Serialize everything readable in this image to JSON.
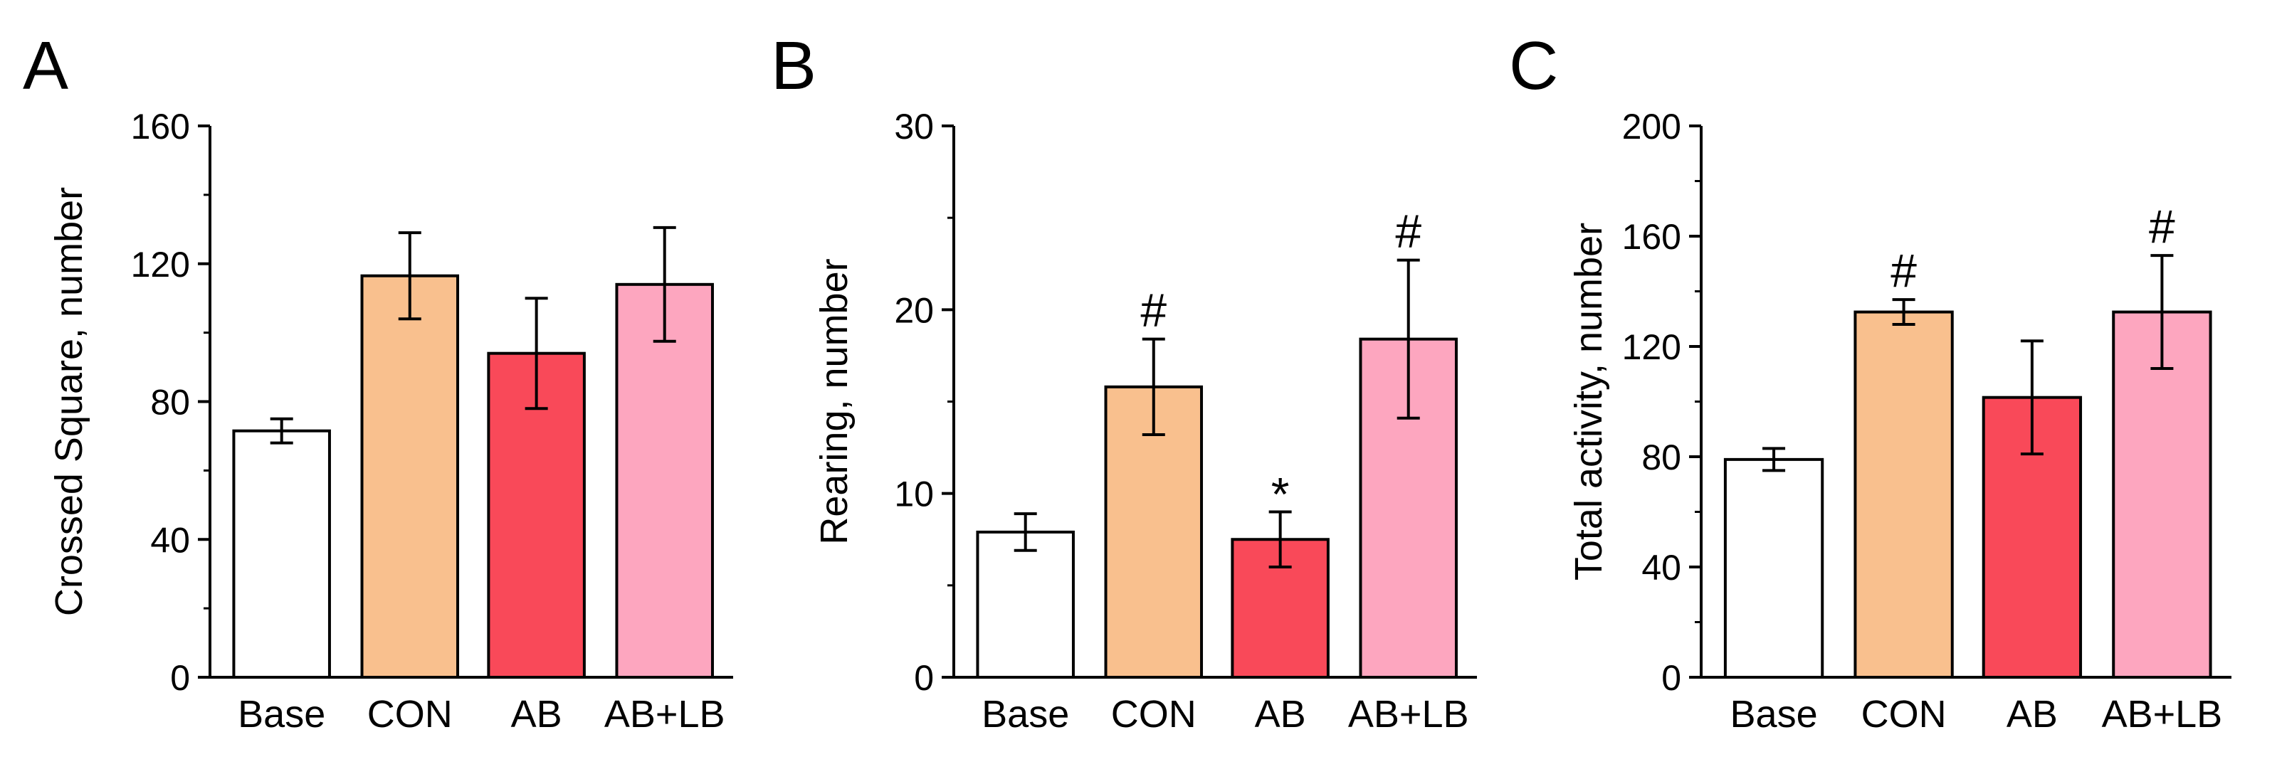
{
  "chart_data": [
    {
      "type": "bar",
      "panel_label": "A",
      "categories": [
        "Base",
        "CON",
        "AB",
        "AB+LB"
      ],
      "values": [
        71.5,
        116.5,
        94,
        114
      ],
      "errors": [
        3.5,
        12.5,
        16,
        16.5
      ],
      "annotations": [
        "",
        "",
        "",
        ""
      ],
      "ylabel": "Crossed Square, number",
      "xlabel": "",
      "ylim": [
        0,
        160
      ],
      "yticks": [
        0,
        40,
        80,
        120,
        160
      ],
      "ytick_labels": [
        "0",
        "40",
        "80",
        "120",
        "160"
      ],
      "minor_step": 20,
      "colors": [
        "#ffffff",
        "#f9c08e",
        "#f94959",
        "#fda6bf"
      ]
    },
    {
      "type": "bar",
      "panel_label": "B",
      "categories": [
        "Base",
        "CON",
        "AB",
        "AB+LB"
      ],
      "values": [
        7.9,
        15.8,
        7.5,
        18.4
      ],
      "errors": [
        1.0,
        2.6,
        1.5,
        4.3
      ],
      "annotations": [
        "",
        "#",
        "*",
        "#"
      ],
      "ylabel": "Rearing, number",
      "xlabel": "",
      "ylim": [
        0,
        30
      ],
      "yticks": [
        0,
        10,
        20,
        30
      ],
      "ytick_labels": [
        "0",
        "10",
        "20",
        "30"
      ],
      "minor_step": 5,
      "colors": [
        "#ffffff",
        "#f9c08e",
        "#f94959",
        "#fda6bf"
      ]
    },
    {
      "type": "bar",
      "panel_label": "C",
      "categories": [
        "Base",
        "CON",
        "AB",
        "AB+LB"
      ],
      "values": [
        79,
        132.5,
        101.5,
        132.5
      ],
      "errors": [
        4,
        4.5,
        20.5,
        20.5
      ],
      "annotations": [
        "",
        "#",
        "",
        "#"
      ],
      "ylabel": "Total activity, number",
      "xlabel": "",
      "ylim": [
        0,
        200
      ],
      "yticks": [
        0,
        40,
        80,
        120,
        160,
        200
      ],
      "ytick_labels": [
        "0",
        "40",
        "80",
        "120",
        "160",
        "200"
      ],
      "minor_step": 20,
      "colors": [
        "#ffffff",
        "#f9c08e",
        "#f94959",
        "#fda6bf"
      ]
    }
  ]
}
